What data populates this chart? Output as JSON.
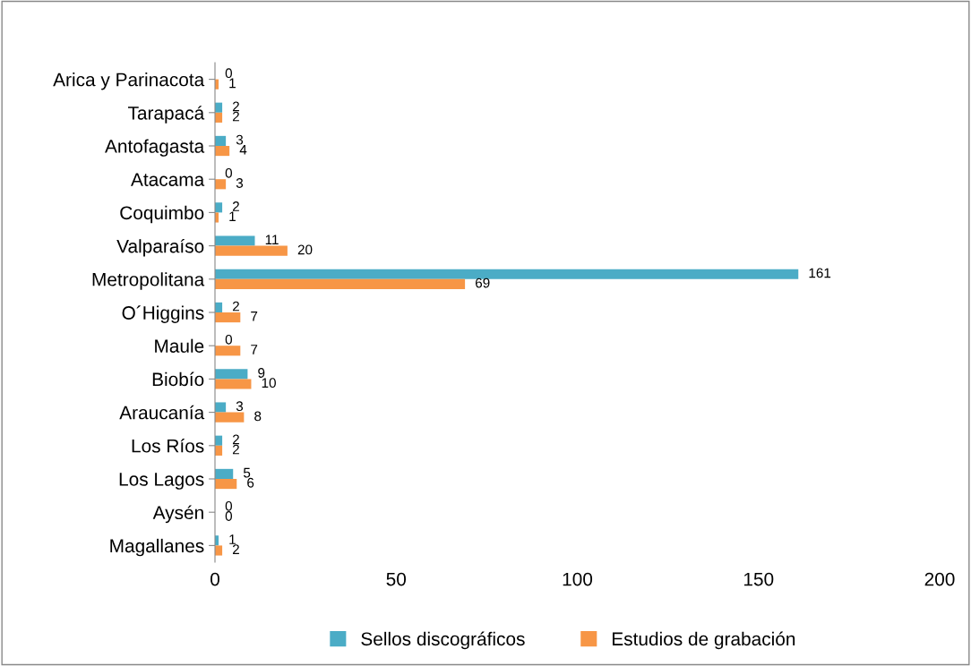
{
  "chart_data": {
    "type": "bar",
    "orientation": "horizontal",
    "categories": [
      "Arica y Parinacota",
      "Tarapacá",
      "Antofagasta",
      "Atacama",
      "Coquimbo",
      "Valparaíso",
      "Metropolitana",
      "O´Higgins",
      "Maule",
      "Biobío",
      "Araucanía",
      "Los Ríos",
      "Los Lagos",
      "Aysén",
      "Magallanes"
    ],
    "series": [
      {
        "name": "Sellos discográficos",
        "color": "#4bacc6",
        "values": [
          0,
          2,
          3,
          0,
          2,
          11,
          161,
          2,
          0,
          9,
          3,
          2,
          5,
          0,
          1
        ]
      },
      {
        "name": "Estudios de grabación",
        "color": "#f79646",
        "values": [
          1,
          2,
          4,
          3,
          1,
          20,
          69,
          7,
          7,
          10,
          8,
          2,
          6,
          0,
          2
        ]
      }
    ],
    "xlim": [
      0,
      200
    ],
    "xticks": [
      0,
      50,
      100,
      150,
      200
    ],
    "grid": false,
    "legend": "bottom",
    "data_labels": true
  }
}
